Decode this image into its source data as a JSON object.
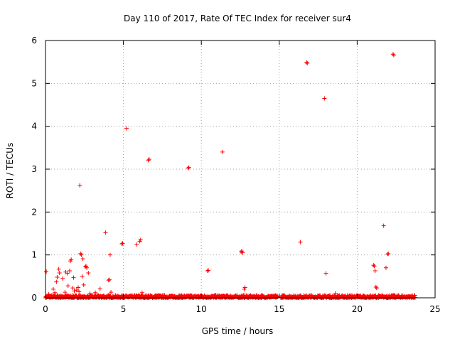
{
  "chart_data": {
    "type": "scatter",
    "title": "Day 110 of 2017, Rate Of TEC Index for receiver sur4",
    "xlabel": "GPS time / hours",
    "ylabel": "ROTI / TECUs",
    "xlim": [
      0,
      25
    ],
    "ylim": [
      0,
      6
    ],
    "xticks": [
      0,
      5,
      10,
      15,
      20,
      25
    ],
    "yticks": [
      0,
      1,
      2,
      3,
      4,
      5,
      6
    ],
    "grid": true,
    "marker": "plus",
    "color": "#ff0000",
    "points": [
      [
        0.05,
        0.61
      ],
      [
        0.2,
        0.08
      ],
      [
        0.5,
        0.2
      ],
      [
        0.6,
        0.12
      ],
      [
        0.7,
        0.37
      ],
      [
        0.75,
        0.48
      ],
      [
        0.85,
        0.67
      ],
      [
        0.9,
        0.58
      ],
      [
        1.1,
        0.45
      ],
      [
        1.25,
        0.13
      ],
      [
        1.3,
        0.6
      ],
      [
        1.4,
        0.57
      ],
      [
        1.45,
        0.28
      ],
      [
        1.55,
        0.63
      ],
      [
        1.6,
        0.86
      ],
      [
        1.65,
        0.89
      ],
      [
        1.75,
        0.23
      ],
      [
        1.8,
        0.47
      ],
      [
        1.85,
        0.16
      ],
      [
        2.0,
        0.18
      ],
      [
        2.1,
        0.24
      ],
      [
        2.15,
        0.14
      ],
      [
        2.2,
        2.62
      ],
      [
        2.25,
        1.03
      ],
      [
        2.3,
        1.0
      ],
      [
        2.35,
        0.5
      ],
      [
        2.4,
        0.91
      ],
      [
        2.45,
        0.3
      ],
      [
        2.55,
        0.72
      ],
      [
        2.6,
        0.74
      ],
      [
        2.65,
        0.7
      ],
      [
        2.75,
        0.58
      ],
      [
        2.85,
        0.1
      ],
      [
        3.2,
        0.12
      ],
      [
        3.5,
        0.21
      ],
      [
        3.85,
        1.52
      ],
      [
        4.05,
        0.41
      ],
      [
        4.1,
        0.42
      ],
      [
        4.15,
        1.0
      ],
      [
        4.2,
        0.13
      ],
      [
        4.9,
        1.26
      ],
      [
        4.95,
        1.27
      ],
      [
        5.2,
        3.95
      ],
      [
        5.85,
        1.24
      ],
      [
        6.05,
        1.32
      ],
      [
        6.1,
        1.35
      ],
      [
        6.2,
        0.12
      ],
      [
        6.6,
        3.21
      ],
      [
        6.65,
        3.23
      ],
      [
        9.15,
        3.02
      ],
      [
        9.2,
        3.04
      ],
      [
        10.4,
        0.63
      ],
      [
        10.45,
        0.64
      ],
      [
        11.35,
        3.4
      ],
      [
        12.55,
        1.07
      ],
      [
        12.6,
        1.09
      ],
      [
        12.65,
        1.05
      ],
      [
        12.75,
        0.2
      ],
      [
        12.8,
        0.24
      ],
      [
        16.35,
        1.3
      ],
      [
        16.75,
        5.49
      ],
      [
        16.8,
        5.47
      ],
      [
        17.9,
        4.65
      ],
      [
        18.0,
        0.57
      ],
      [
        18.6,
        0.1
      ],
      [
        21.05,
        0.76
      ],
      [
        21.1,
        0.74
      ],
      [
        21.15,
        0.63
      ],
      [
        21.2,
        0.25
      ],
      [
        21.25,
        0.23
      ],
      [
        21.7,
        1.68
      ],
      [
        21.85,
        0.7
      ],
      [
        21.95,
        1.02
      ],
      [
        22.0,
        1.03
      ],
      [
        22.3,
        5.68
      ],
      [
        22.35,
        5.66
      ]
    ],
    "baseline_band": [
      {
        "x": [
          0,
          14.9
        ],
        "y_max": 0.06
      },
      {
        "x": [
          15.1,
          23.7
        ],
        "y_max": 0.06
      }
    ]
  }
}
